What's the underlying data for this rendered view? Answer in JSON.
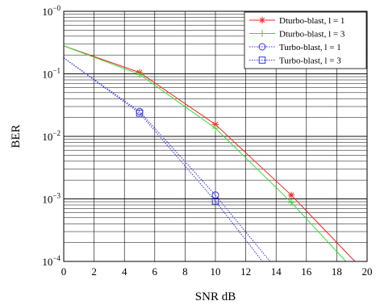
{
  "chart_data": {
    "type": "line",
    "title": "",
    "xlabel": "SNR dB",
    "ylabel": "BER",
    "x_axis": {
      "min": 0,
      "max": 20,
      "ticks": [
        0,
        2,
        4,
        6,
        8,
        10,
        12,
        14,
        16,
        18,
        20
      ],
      "tick_labels": [
        "0",
        "2",
        "4",
        "6",
        "8",
        "10",
        "12",
        "14",
        "16",
        "18",
        "20"
      ]
    },
    "y_axis": {
      "scale": "log",
      "min": 0.0001,
      "max": 1,
      "ticks": [
        1,
        0.1,
        0.01,
        0.001,
        0.0001
      ],
      "tick_labels": [
        {
          "base": "10",
          "exp": "−0"
        },
        {
          "base": "10",
          "exp": "−1"
        },
        {
          "base": "10",
          "exp": "−2"
        },
        {
          "base": "10",
          "exp": "−3"
        },
        {
          "base": "10",
          "exp": "−4"
        }
      ]
    },
    "grid": true,
    "legend_position": "top-right",
    "series": [
      {
        "name": "Dturbo-blast, l = 1",
        "color": "#ff2020",
        "marker": "star",
        "x": [
          0,
          5,
          10,
          15,
          19.2
        ],
        "y": [
          0.28,
          0.105,
          0.0155,
          0.00115,
          0.0001
        ],
        "marker_x": [
          5,
          10,
          15
        ]
      },
      {
        "name": "Dturbo-blast, l = 3",
        "color": "#33dd33",
        "marker": "plus",
        "x": [
          0,
          5,
          10,
          15,
          18.6
        ],
        "y": [
          0.28,
          0.098,
          0.0135,
          0.00088,
          0.0001
        ],
        "marker_x": [
          5,
          10,
          15
        ]
      },
      {
        "name": "Turbo-blast, l = 1",
        "color": "#3333dd",
        "marker": "circle",
        "x": [
          0,
          5,
          10,
          13.6
        ],
        "y": [
          0.18,
          0.025,
          0.00115,
          0.0001
        ],
        "marker_x": [
          5,
          10
        ]
      },
      {
        "name": "Turbo-blast, l = 3",
        "color": "#3333dd",
        "marker": "square",
        "x": [
          0,
          5,
          10,
          13.1
        ],
        "y": [
          0.18,
          0.0235,
          0.00092,
          0.0001
        ],
        "marker_x": [
          5,
          10
        ]
      }
    ]
  }
}
